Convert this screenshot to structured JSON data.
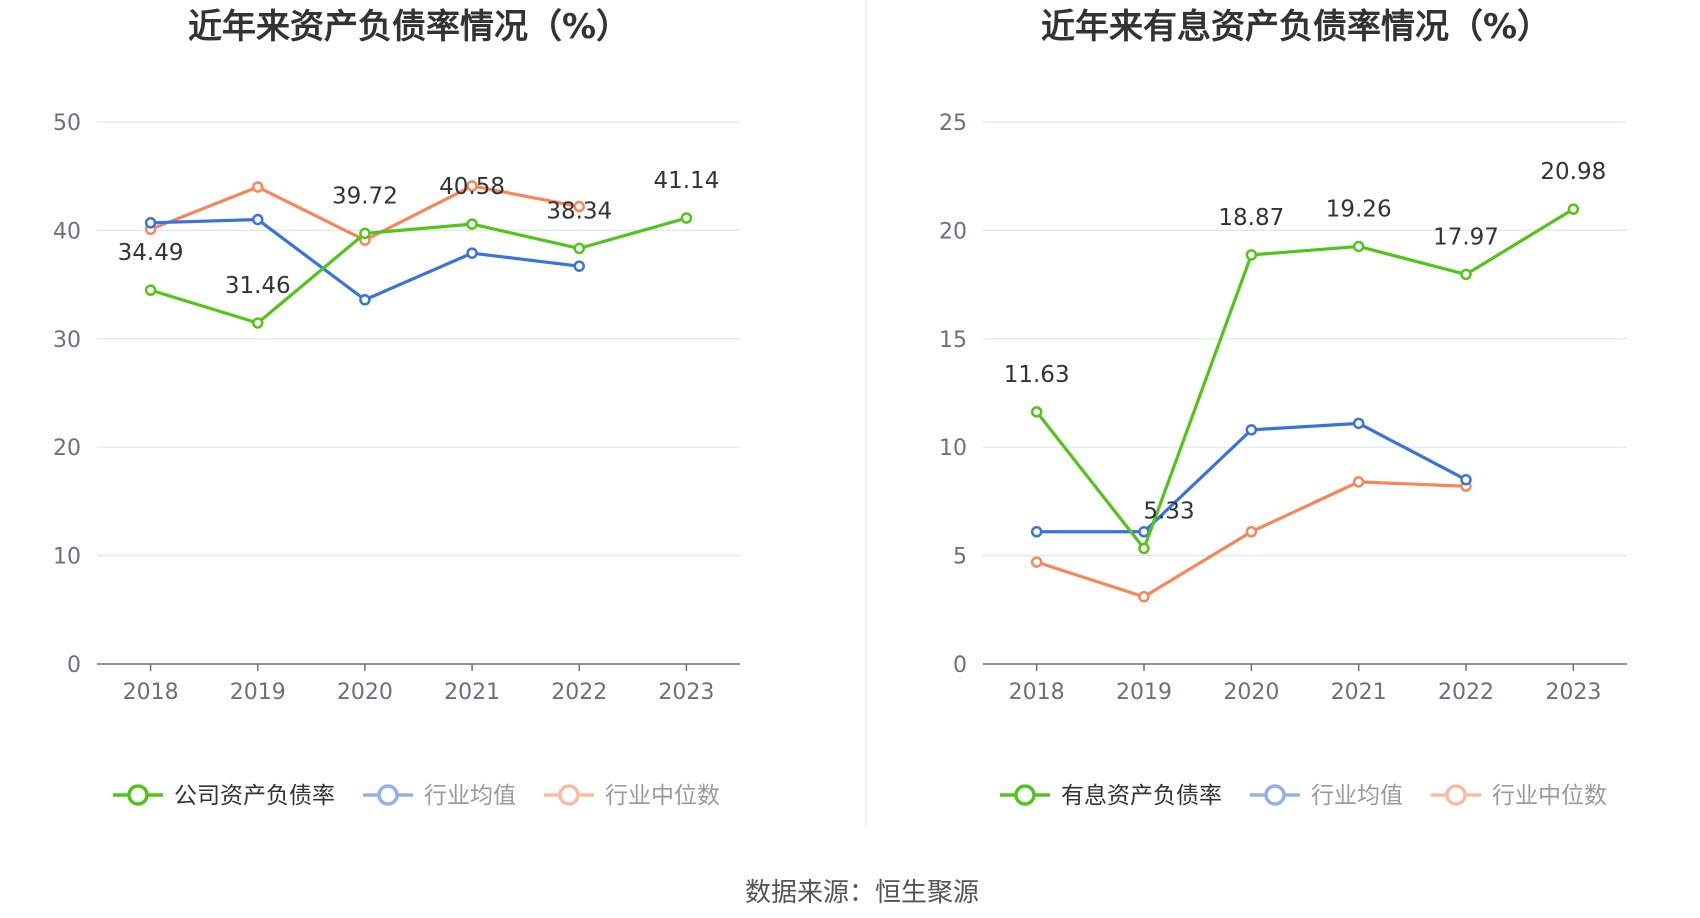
{
  "footer": {
    "source": "数据来源：恒生聚源"
  },
  "chart_data": [
    {
      "type": "line",
      "title": "近年来资产负债率情况（%）",
      "categories": [
        "2018",
        "2019",
        "2020",
        "2021",
        "2022",
        "2023"
      ],
      "ylim": [
        0,
        50
      ],
      "yticks": [
        0,
        10,
        20,
        30,
        40,
        50
      ],
      "grid": true,
      "legend_position": "bottom",
      "series": [
        {
          "name": "公司资产负债率",
          "color": "#52c41a",
          "values": [
            34.49,
            31.46,
            39.72,
            40.58,
            38.34,
            41.14
          ],
          "show_labels": true,
          "legend_dim": false
        },
        {
          "name": "行业均值",
          "color": "#3b73db",
          "values": [
            40.7,
            41.0,
            33.6,
            37.9,
            36.7,
            null
          ],
          "show_labels": false,
          "legend_dim": true
        },
        {
          "name": "行业中位数",
          "color": "#f5875a",
          "values": [
            40.1,
            44.0,
            39.1,
            44.1,
            42.2,
            null
          ],
          "show_labels": false,
          "legend_dim": true
        }
      ]
    },
    {
      "type": "line",
      "title": "近年来有息资产负债率情况（%）",
      "categories": [
        "2018",
        "2019",
        "2020",
        "2021",
        "2022",
        "2023"
      ],
      "ylim": [
        0,
        25
      ],
      "yticks": [
        0,
        5,
        10,
        15,
        20,
        25
      ],
      "grid": true,
      "legend_position": "bottom",
      "series": [
        {
          "name": "有息资产负债率",
          "color": "#52c41a",
          "values": [
            11.63,
            5.33,
            18.87,
            19.26,
            17.97,
            20.98
          ],
          "show_labels": true,
          "legend_dim": false
        },
        {
          "name": "行业均值",
          "color": "#3b73db",
          "values": [
            6.1,
            6.1,
            10.8,
            11.1,
            8.5,
            null
          ],
          "show_labels": false,
          "legend_dim": true
        },
        {
          "name": "行业中位数",
          "color": "#f5875a",
          "values": [
            4.7,
            3.1,
            6.1,
            8.4,
            8.2,
            null
          ],
          "show_labels": false,
          "legend_dim": true
        }
      ]
    }
  ]
}
